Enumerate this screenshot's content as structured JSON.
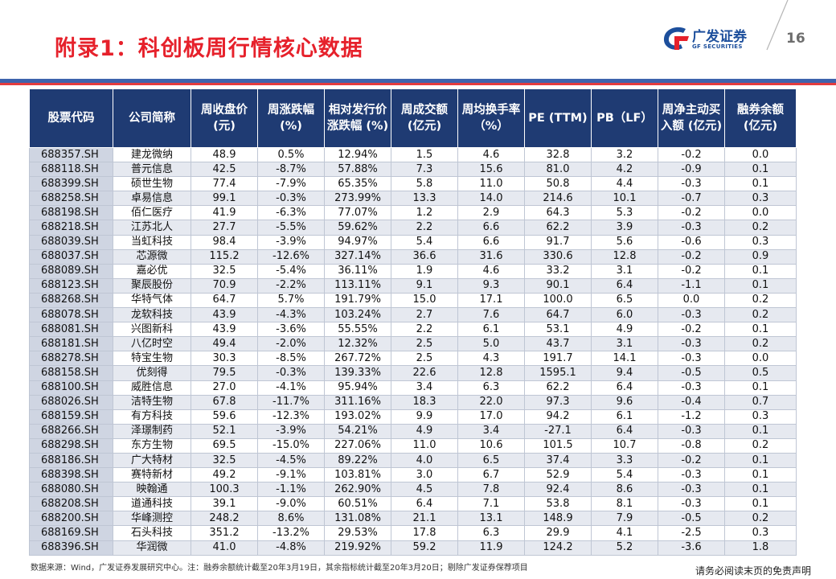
{
  "title": "附录1：科创板周行情核心数据",
  "page_number": "16",
  "logo": {
    "cn": "广发证券",
    "en": "GF SECURITIES",
    "icon": "gf-logo-icon"
  },
  "colors": {
    "title_red": "#e6212b",
    "header_navy": "#1f3b73",
    "rule_blue": "#3e63ad",
    "rule_red": "#e33b3e",
    "row_alt": "#e6e9f0",
    "code_cell": "#cfd5e2"
  },
  "table": {
    "headers": [
      "股票代码",
      "公司简称",
      "周收盘价 (元)",
      "周涨跌幅 (%)",
      "相对发行价涨跌幅 (%)",
      "周成交额 (亿元)",
      "周均换手率（%）",
      "PE (TTM)",
      "PB（LF）",
      "周净主动买入额 (亿元)",
      "融券余额 (亿元)"
    ],
    "rows": [
      [
        "688357.SH",
        "建龙微纳",
        "48.9",
        "0.5%",
        "12.94%",
        "1.5",
        "4.6",
        "32.8",
        "3.2",
        "-0.2",
        "0.0"
      ],
      [
        "688118.SH",
        "普元信息",
        "42.5",
        "-8.7%",
        "57.88%",
        "7.3",
        "15.6",
        "81.0",
        "4.2",
        "-0.9",
        "0.1"
      ],
      [
        "688399.SH",
        "硕世生物",
        "77.4",
        "-7.9%",
        "65.35%",
        "5.8",
        "11.0",
        "50.8",
        "4.4",
        "-0.3",
        "0.1"
      ],
      [
        "688258.SH",
        "卓易信息",
        "99.1",
        "-0.3%",
        "273.99%",
        "13.3",
        "14.0",
        "214.6",
        "10.1",
        "-0.7",
        "0.3"
      ],
      [
        "688198.SH",
        "佰仁医疗",
        "41.9",
        "-6.3%",
        "77.07%",
        "1.2",
        "2.9",
        "64.3",
        "5.3",
        "-0.2",
        "0.0"
      ],
      [
        "688218.SH",
        "江苏北人",
        "27.7",
        "-5.5%",
        "59.62%",
        "2.2",
        "6.6",
        "62.2",
        "3.9",
        "-0.3",
        "0.2"
      ],
      [
        "688039.SH",
        "当虹科技",
        "98.4",
        "-3.9%",
        "94.97%",
        "5.4",
        "6.6",
        "91.7",
        "5.6",
        "-0.6",
        "0.3"
      ],
      [
        "688037.SH",
        "芯源微",
        "115.2",
        "-12.6%",
        "327.14%",
        "36.6",
        "31.6",
        "330.6",
        "12.8",
        "-0.2",
        "0.9"
      ],
      [
        "688089.SH",
        "嘉必优",
        "32.5",
        "-5.4%",
        "36.11%",
        "1.9",
        "4.6",
        "33.2",
        "3.1",
        "-0.2",
        "0.1"
      ],
      [
        "688123.SH",
        "聚辰股份",
        "70.9",
        "-2.2%",
        "113.11%",
        "9.1",
        "9.3",
        "90.1",
        "6.4",
        "-1.1",
        "0.1"
      ],
      [
        "688268.SH",
        "华特气体",
        "64.7",
        "5.7%",
        "191.79%",
        "15.0",
        "17.1",
        "100.0",
        "6.5",
        "0.0",
        "0.2"
      ],
      [
        "688078.SH",
        "龙软科技",
        "43.9",
        "-4.3%",
        "103.24%",
        "2.7",
        "7.6",
        "64.7",
        "6.0",
        "-0.3",
        "0.2"
      ],
      [
        "688081.SH",
        "兴图新科",
        "43.9",
        "-3.6%",
        "55.55%",
        "2.2",
        "6.1",
        "53.1",
        "4.9",
        "-0.2",
        "0.1"
      ],
      [
        "688181.SH",
        "八亿时空",
        "49.4",
        "-2.0%",
        "12.32%",
        "2.5",
        "5.0",
        "43.7",
        "3.1",
        "-0.3",
        "0.2"
      ],
      [
        "688278.SH",
        "特宝生物",
        "30.3",
        "-8.5%",
        "267.72%",
        "2.5",
        "4.3",
        "191.7",
        "14.1",
        "-0.3",
        "0.0"
      ],
      [
        "688158.SH",
        "优刻得",
        "79.5",
        "-0.3%",
        "139.33%",
        "22.6",
        "12.8",
        "1595.1",
        "9.4",
        "-0.5",
        "0.5"
      ],
      [
        "688100.SH",
        "威胜信息",
        "27.0",
        "-4.1%",
        "95.94%",
        "3.4",
        "6.3",
        "62.2",
        "6.4",
        "-0.3",
        "0.1"
      ],
      [
        "688026.SH",
        "洁特生物",
        "67.8",
        "-11.7%",
        "311.16%",
        "18.3",
        "22.0",
        "97.3",
        "9.6",
        "-0.4",
        "0.7"
      ],
      [
        "688159.SH",
        "有方科技",
        "59.6",
        "-12.3%",
        "193.02%",
        "9.9",
        "17.0",
        "94.2",
        "6.1",
        "-1.2",
        "0.3"
      ],
      [
        "688266.SH",
        "泽璟制药",
        "52.1",
        "-3.9%",
        "54.21%",
        "4.9",
        "3.4",
        "-27.1",
        "6.4",
        "-0.3",
        "0.1"
      ],
      [
        "688298.SH",
        "东方生物",
        "69.5",
        "-15.0%",
        "227.06%",
        "11.0",
        "10.6",
        "101.5",
        "10.7",
        "-0.8",
        "0.2"
      ],
      [
        "688186.SH",
        "广大特材",
        "32.5",
        "-4.5%",
        "89.22%",
        "4.0",
        "6.5",
        "37.4",
        "3.3",
        "-0.2",
        "0.1"
      ],
      [
        "688398.SH",
        "赛特新材",
        "49.2",
        "-9.1%",
        "103.81%",
        "3.0",
        "6.7",
        "52.9",
        "5.4",
        "-0.3",
        "0.1"
      ],
      [
        "688080.SH",
        "映翰通",
        "100.3",
        "-1.1%",
        "262.90%",
        "4.5",
        "7.8",
        "92.4",
        "8.6",
        "-0.3",
        "0.1"
      ],
      [
        "688208.SH",
        "道通科技",
        "39.1",
        "-9.0%",
        "60.51%",
        "6.4",
        "7.1",
        "53.8",
        "8.1",
        "-0.3",
        "0.1"
      ],
      [
        "688200.SH",
        "华峰测控",
        "248.2",
        "8.6%",
        "131.08%",
        "21.1",
        "13.1",
        "148.9",
        "7.9",
        "-0.5",
        "0.2"
      ],
      [
        "688169.SH",
        "石头科技",
        "351.2",
        "-13.2%",
        "29.53%",
        "17.8",
        "6.3",
        "29.9",
        "4.1",
        "-2.5",
        "0.3"
      ],
      [
        "688396.SH",
        "华润微",
        "41.0",
        "-4.8%",
        "219.92%",
        "59.2",
        "11.9",
        "124.2",
        "5.2",
        "-3.6",
        "1.8"
      ]
    ]
  },
  "footer_note": "数据来源：Wind，广发证券发展研究中心。注：融券余额统计截至20年3月19日，其余指标统计截至20年3月20日；剔除广发证券保荐项目",
  "disclaimer": "请务必阅读末页的免责声明"
}
